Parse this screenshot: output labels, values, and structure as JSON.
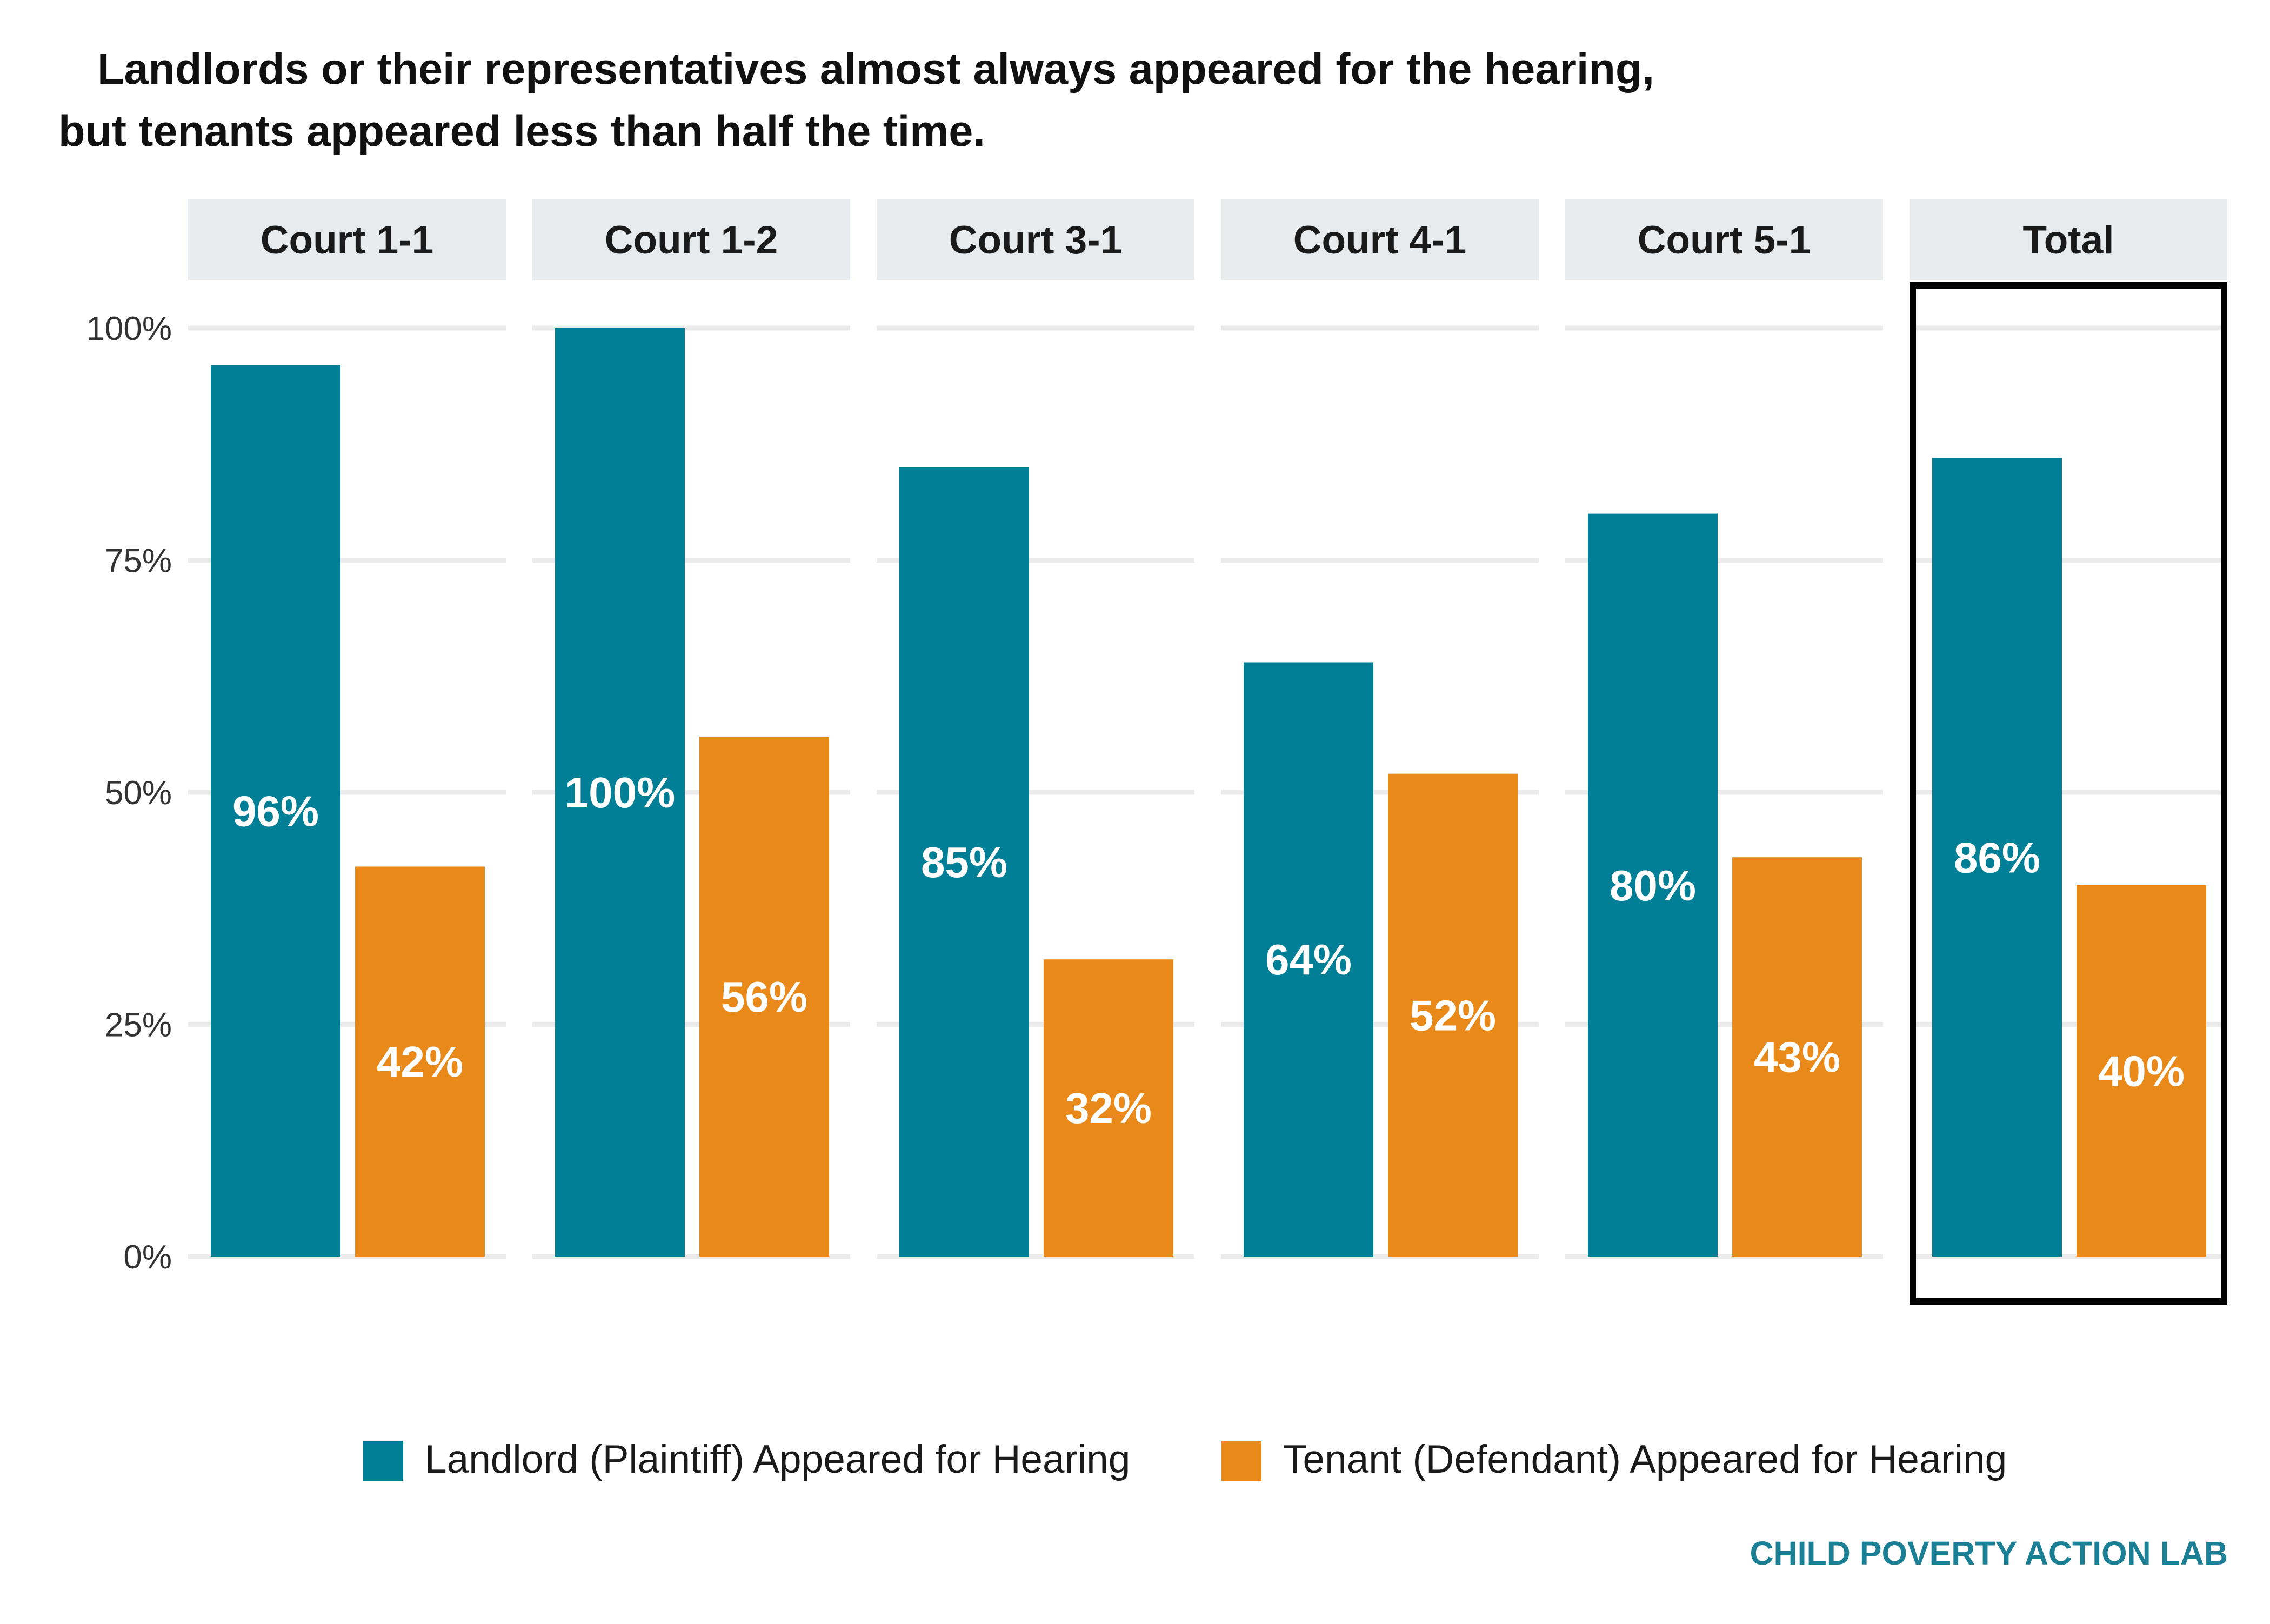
{
  "title_lines": [
    "Landlords or their representatives almost always appeared for the hearing,",
    "but tenants appeared less than half the time."
  ],
  "credit": "CHILD POVERTY ACTION LAB",
  "colors": {
    "landlord": "#007f96",
    "tenant": "#e8891a",
    "facet_strip": "#e8ebed",
    "grid": "#ebebeb",
    "highlight_border": "#000000",
    "credit": "#1a7f94"
  },
  "legend_position": "bottom",
  "highlighted_panel": "Total",
  "chart_data": {
    "type": "bar",
    "facets": [
      "Court 1-1",
      "Court 1-2",
      "Court 3-1",
      "Court 4-1",
      "Court 5-1",
      "Total"
    ],
    "series": [
      {
        "name": "Landlord (Plaintiff) Appeared for Hearing",
        "values": [
          96,
          100,
          85,
          64,
          80,
          86
        ],
        "labels": [
          "96%",
          "100%",
          "85%",
          "64%",
          "80%",
          "86%"
        ]
      },
      {
        "name": "Tenant (Defendant) Appeared for Hearing",
        "values": [
          42,
          56,
          32,
          52,
          43,
          40
        ],
        "labels": [
          "42%",
          "56%",
          "32%",
          "52%",
          "43%",
          "40%"
        ]
      }
    ],
    "y_ticks": [
      "0%",
      "25%",
      "50%",
      "75%",
      "100%"
    ],
    "ylim": [
      0,
      100
    ],
    "grid": true
  }
}
